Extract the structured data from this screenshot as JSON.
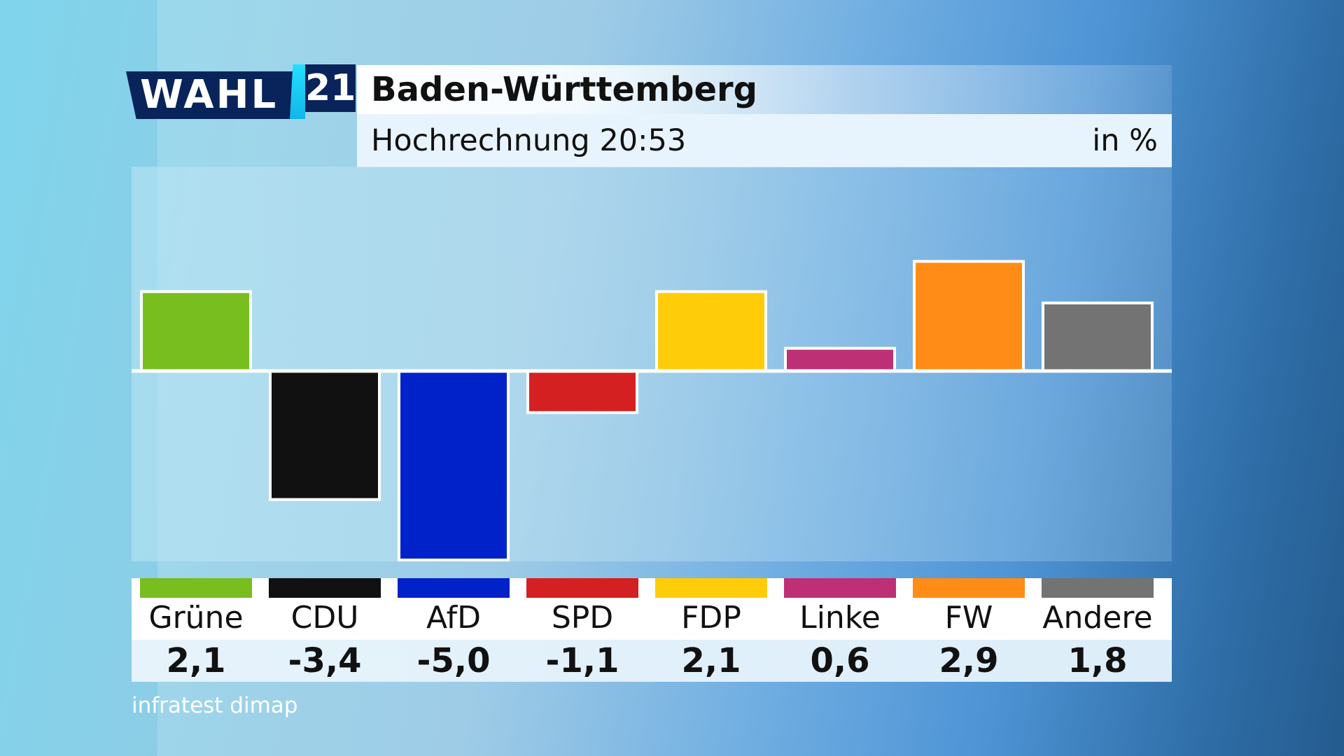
{
  "logo": {
    "wahl": "WAHL",
    "year": "21"
  },
  "header": {
    "title": "Baden-Württemberg",
    "subtitle": "Hochrechnung 20:53",
    "unit": "in %"
  },
  "source": "infratest dimap",
  "colors": {
    "gruene": "#78be1e",
    "cdu": "#111111",
    "afd": "#0022c8",
    "spd": "#d42020",
    "fdp": "#ffcc0a",
    "linke": "#be3075",
    "fw": "#ff8c16",
    "andere": "#737373"
  },
  "chart_data": {
    "type": "bar",
    "categories": [
      "Grüne",
      "CDU",
      "AfD",
      "SPD",
      "FDP",
      "Linke",
      "FW",
      "Andere"
    ],
    "values": [
      2.1,
      -3.4,
      -5.0,
      -1.1,
      2.1,
      0.6,
      2.9,
      1.8
    ],
    "value_labels": [
      "2,1",
      "-3,4",
      "-5,0",
      "-1,1",
      "2,1",
      "0,6",
      "2,9",
      "1,8"
    ],
    "bar_colors": [
      "#78be1e",
      "#111111",
      "#0022c8",
      "#d42020",
      "#ffcc0a",
      "#be3075",
      "#ff8c16",
      "#737373"
    ],
    "ylim": [
      -5.0,
      3.0
    ],
    "title": "Baden-Württemberg",
    "subtitle": "Hochrechnung 20:53",
    "ylabel": "in %",
    "grid": false,
    "legend": "bottom"
  }
}
